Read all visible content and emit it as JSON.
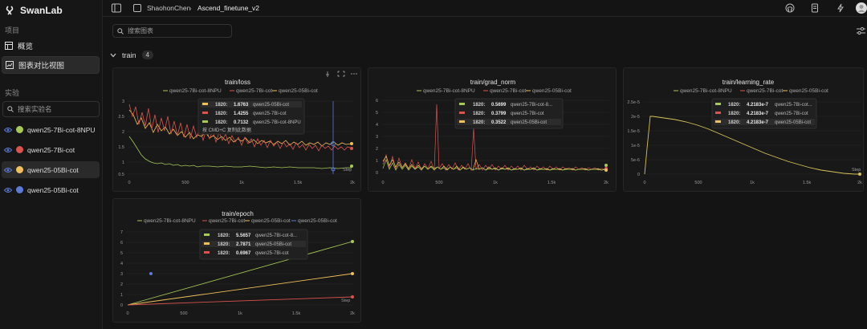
{
  "app": {
    "name": "SwanLab"
  },
  "breadcrumb": {
    "user": "ShaohonChen",
    "project": "Ascend_finetune_v2"
  },
  "sidebar": {
    "project_label": "项目",
    "nav": [
      {
        "label": "概览",
        "icon": "table-icon"
      },
      {
        "label": "图表对比视图",
        "icon": "chart-compare-icon"
      }
    ],
    "experiments_label": "实验",
    "search_placeholder": "搜索实验名",
    "experiments": [
      {
        "name": "qwen25-7Bi-cot-8NPU",
        "color": "#a7c957"
      },
      {
        "name": "qwen25-7Bi-cot",
        "color": "#d9534f"
      },
      {
        "name": "qwen25-05Bi-cot",
        "color": "#f0c05a"
      },
      {
        "name": "qwen25-05Bi-cot",
        "color": "#5b7bd5"
      }
    ]
  },
  "main": {
    "search_placeholder": "搜索图表",
    "group": {
      "name": "train",
      "count": "4"
    }
  },
  "charts": {
    "loss": {
      "title": "train/loss",
      "legend": [
        "qwen25-7Bi-cot-8NPU",
        "qwen25-7Bi-cot",
        "qwen25-05Bi-cot"
      ],
      "yticks": [
        "3",
        "2.5",
        "2",
        "1.5",
        "1",
        "0.5"
      ],
      "xticks": [
        "0",
        "500",
        "1k",
        "1.5k",
        "2k"
      ],
      "tooltip": [
        {
          "step": "1820:",
          "value": "1.6763",
          "name": "qwen25-05Bi-cot",
          "color": "#f0c05a"
        },
        {
          "step": "1820:",
          "value": "1.4255",
          "name": "qwen25-7Bi-cot",
          "color": "#d9534f"
        },
        {
          "step": "1820:",
          "value": "0.7132",
          "name": "qwen25-7Bi-cot-8NPU",
          "color": "#a7c957"
        }
      ],
      "copy_hint": "按 CMD+C 复制此数据",
      "step_label": "Step"
    },
    "grad_norm": {
      "title": "train/grad_norm",
      "legend": [
        "qwen25-7Bi-cot-8NPU",
        "qwen25-7Bi-cot",
        "qwen25-05Bi-cot"
      ],
      "yticks": [
        "6",
        "5",
        "4",
        "3",
        "2",
        "1",
        "0"
      ],
      "xticks": [
        "0",
        "500",
        "1k",
        "1.5k",
        "2k"
      ],
      "tooltip": [
        {
          "step": "1820:",
          "value": "0.5699",
          "name": "qwen25-7Bi-cot-8...",
          "color": "#a7c957"
        },
        {
          "step": "1820:",
          "value": "0.3799",
          "name": "qwen25-7Bi-cot",
          "color": "#d9534f"
        },
        {
          "step": "1820:",
          "value": "0.3522",
          "name": "qwen25-05Bi-cot",
          "color": "#f0c05a"
        }
      ]
    },
    "learning_rate": {
      "title": "train/learning_rate",
      "legend": [
        "qwen25-7Bi-cot-8NPU",
        "qwen25-7Bi-cot",
        "qwen25-05Bi-cot"
      ],
      "yticks": [
        "2.5e-5",
        "2e-5",
        "1.5e-5",
        "1e-5",
        "5e-6",
        "0"
      ],
      "xticks": [
        "0",
        "500",
        "1k",
        "1.5k",
        "2k"
      ],
      "tooltip": [
        {
          "step": "1820:",
          "value": "4.2183e-7",
          "name": "qwen25-7Bi-cot...",
          "color": "#a7c957"
        },
        {
          "step": "1820:",
          "value": "4.2183e-7",
          "name": "qwen25-7Bi-cot",
          "color": "#d9534f"
        },
        {
          "step": "1820:",
          "value": "4.2183e-7",
          "name": "qwen25-05Bi-cot",
          "color": "#f0c05a"
        }
      ],
      "step_label": "Step"
    },
    "epoch": {
      "title": "train/epoch",
      "legend": [
        "qwen25-7Bi-cot-8NPU",
        "qwen25-7Bi-cot",
        "qwen25-05Bi-cot",
        "qwen25-05Bi-cot"
      ],
      "legend_colors": [
        "#a7c957",
        "#d9534f",
        "#f0c05a",
        "#5b7bd5"
      ],
      "yticks": [
        "7",
        "6",
        "5",
        "4",
        "3",
        "2",
        "1",
        "0"
      ],
      "xticks": [
        "0",
        "500",
        "1k",
        "1.5k",
        "2k"
      ],
      "tooltip": [
        {
          "step": "1820:",
          "value": "5.5657",
          "name": "qwen25-7Bi-cot-8...",
          "color": "#a7c957"
        },
        {
          "step": "1820:",
          "value": "2.7871",
          "name": "qwen25-05Bi-cot",
          "color": "#f0c05a"
        },
        {
          "step": "1820:",
          "value": "0.6967",
          "name": "qwen25-7Bi-cot",
          "color": "#d9534f"
        }
      ],
      "step_label": "Step"
    }
  },
  "colors": {
    "npu": "#a7c957",
    "7b": "#d9534f",
    "05b": "#f0c05a",
    "blue": "#5b7bd5"
  }
}
